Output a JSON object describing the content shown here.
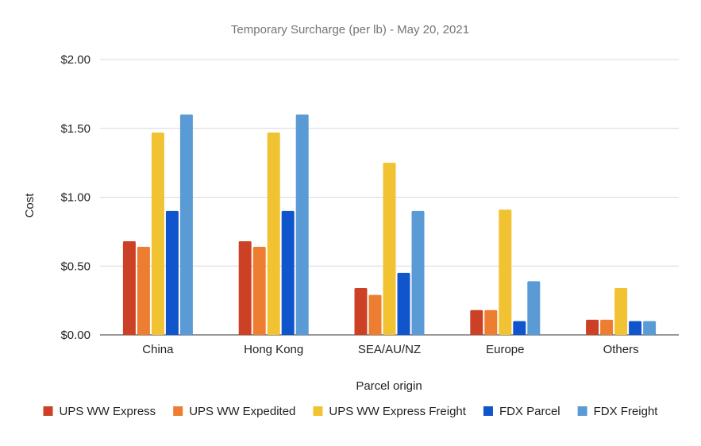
{
  "chart_data": {
    "type": "bar",
    "title": "Temporary Surcharge (per lb) - May 20, 2021",
    "xlabel": "Parcel origin",
    "ylabel": "Cost",
    "categories": [
      "China",
      "Hong Kong",
      "SEA/AU/NZ",
      "Europe",
      "Others"
    ],
    "ylim": [
      0,
      2
    ],
    "yticks": [
      "$0.00",
      "$0.50",
      "$1.00",
      "$1.50",
      "$2.00"
    ],
    "ytick_values": [
      0,
      0.5,
      1,
      1.5,
      2
    ],
    "grid": true,
    "legend_position": "bottom",
    "series": [
      {
        "name": "UPS WW Express",
        "color": "#cc4125",
        "values": [
          0.68,
          0.68,
          0.34,
          0.18,
          0.11
        ]
      },
      {
        "name": "UPS WW Expedited",
        "color": "#ed7d31",
        "values": [
          0.64,
          0.64,
          0.29,
          0.18,
          0.11
        ]
      },
      {
        "name": "UPS WW Express Freight",
        "color": "#f1c232",
        "values": [
          1.47,
          1.47,
          1.25,
          0.91,
          0.34
        ]
      },
      {
        "name": "FDX Parcel",
        "color": "#1155cc",
        "values": [
          0.9,
          0.9,
          0.45,
          0.1,
          0.1
        ]
      },
      {
        "name": "FDX Freight",
        "color": "#5b9bd5",
        "values": [
          1.6,
          1.6,
          0.9,
          0.39,
          0.1
        ]
      }
    ]
  }
}
